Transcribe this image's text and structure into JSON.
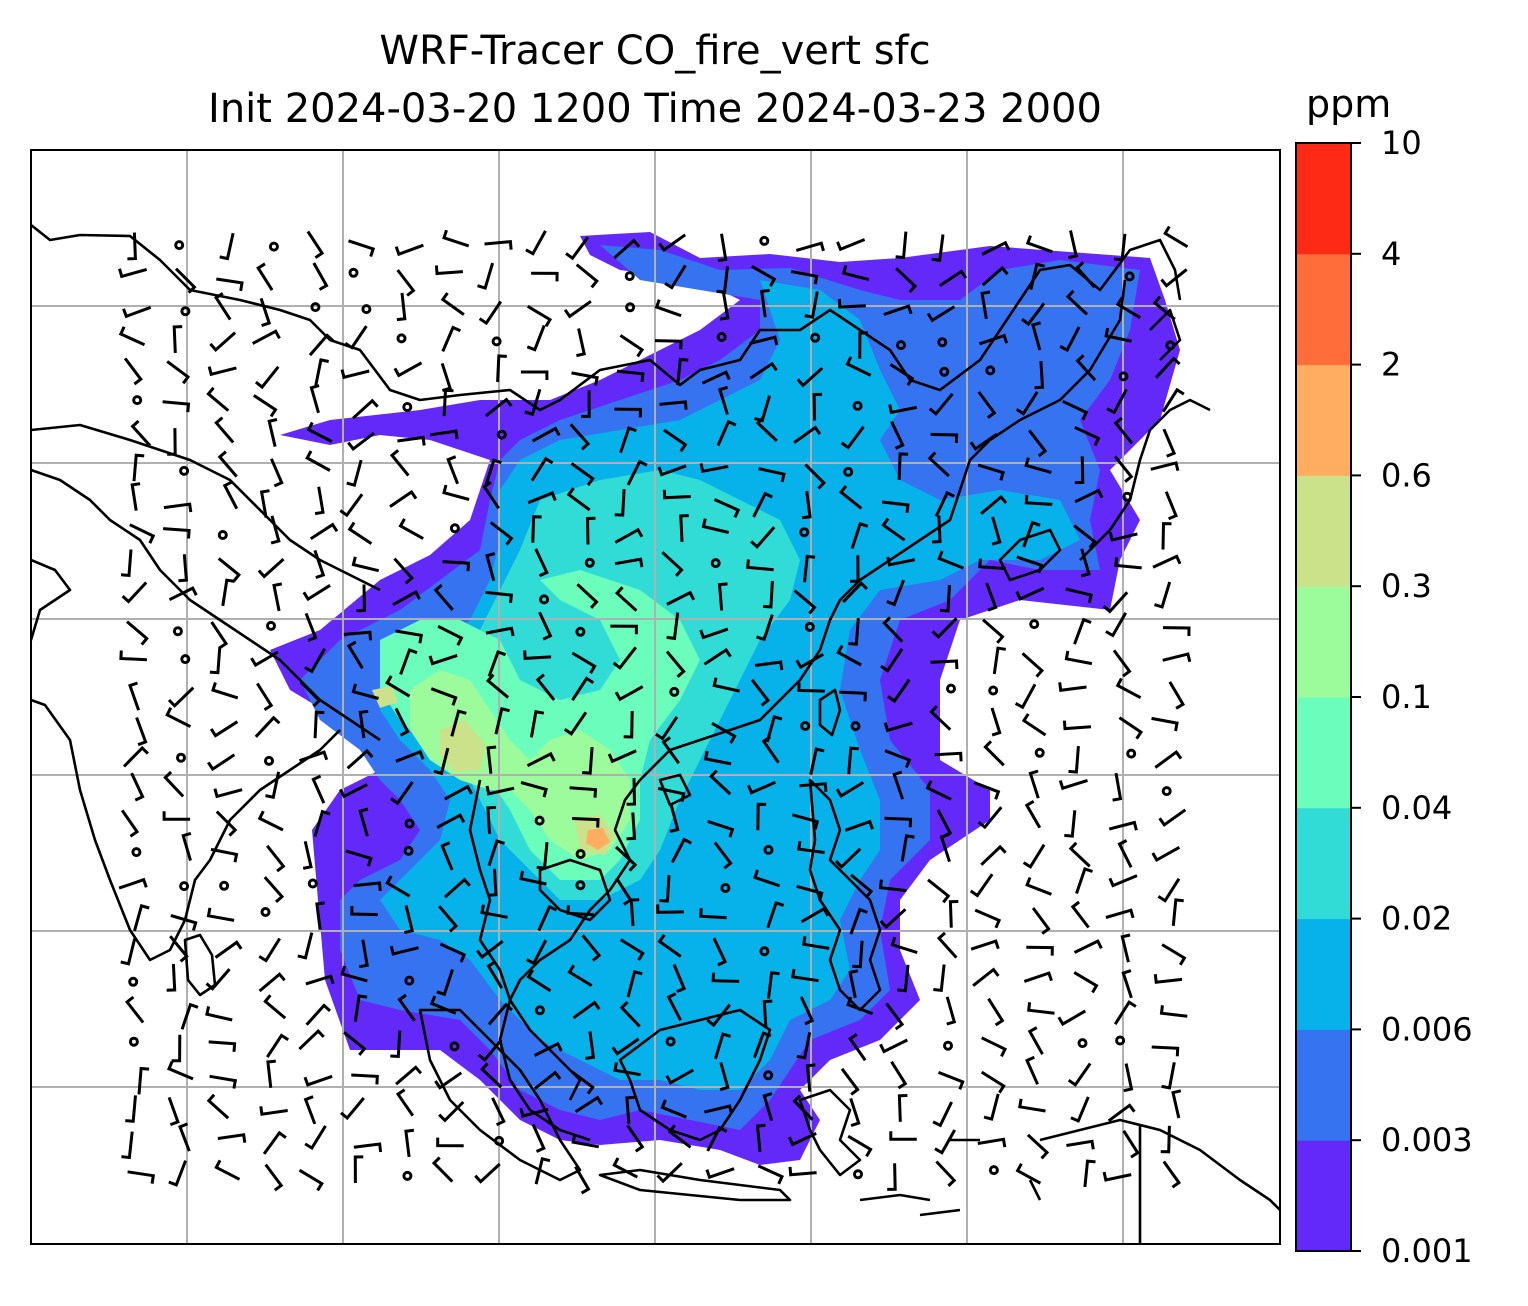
{
  "title_line1": "WRF-Tracer CO_fire_vert sfc",
  "title_line2": "Init 2024-03-20 1200 Time 2024-03-23 2000",
  "colorbar": {
    "unit": "ppm",
    "levels": [
      "0.001",
      "0.003",
      "0.006",
      "0.02",
      "0.04",
      "0.1",
      "0.3",
      "0.6",
      "2",
      "4",
      "10"
    ],
    "colors": [
      "#6229f9",
      "#3673f0",
      "#07b1e9",
      "#31dcd7",
      "#6bfdbb",
      "#9cfb9b",
      "#cce28a",
      "#ffad60",
      "#ff6e3a",
      "#ff2a16"
    ]
  },
  "map": {
    "gridlines": true,
    "grid_color": "#b0b0b0",
    "coastline_color": "#000000",
    "wind_barbs": true,
    "plume_colors": {
      "0.001": "#6229f9",
      "0.003": "#3673f0",
      "0.006": "#07b1e9",
      "0.02": "#31dcd7",
      "0.04": "#6bfdbb",
      "0.1": "#9cfb9b",
      "0.3": "#cce28a",
      "0.6": "#ffad60"
    }
  }
}
